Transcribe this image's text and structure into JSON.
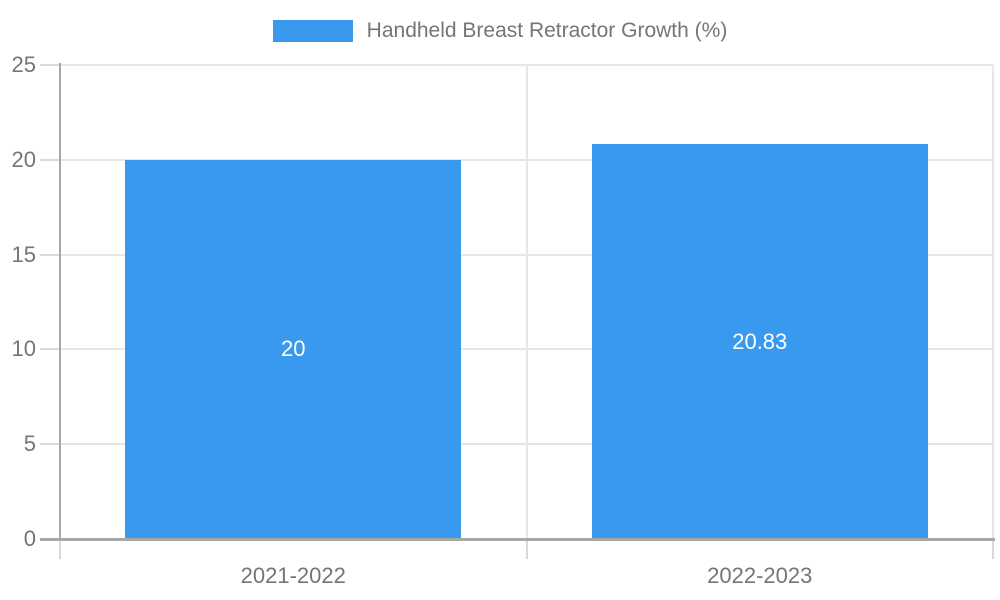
{
  "legend": {
    "label": "Handheld Breast Retractor Growth (%)"
  },
  "chart_data": {
    "type": "bar",
    "title": "Handheld Breast Retractor Growth (%)",
    "categories": [
      "2021-2022",
      "2022-2023"
    ],
    "values": [
      20,
      20.83
    ],
    "value_labels": [
      "20",
      "20.83"
    ],
    "series": [
      {
        "name": "Handheld Breast Retractor Growth (%)",
        "values": [
          20,
          20.83
        ]
      }
    ],
    "xlabel": "",
    "ylabel": "",
    "ylim": [
      0,
      25
    ],
    "yticks": [
      0,
      5,
      10,
      15,
      20,
      25
    ],
    "grid": true,
    "legend_position": "top"
  },
  "colors": {
    "bar": "#3999EE",
    "grid": "#e6e6e6",
    "tick": "#d9d9d9",
    "axis": "#a8a8a8",
    "text": "#757575",
    "value_label": "#ffffff"
  }
}
